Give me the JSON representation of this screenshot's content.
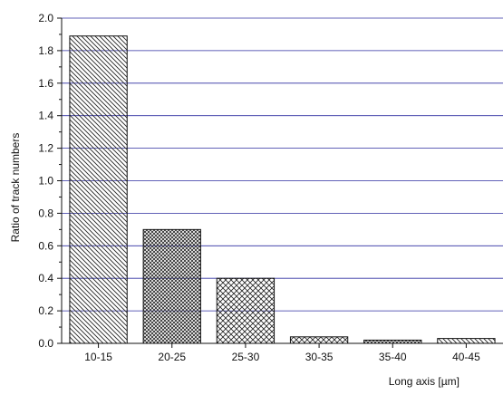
{
  "chart_data": {
    "type": "bar",
    "title": "",
    "xlabel": "Long axis [µm]",
    "ylabel": "Ratio of track numbers",
    "categories": [
      "10-15",
      "20-25",
      "25-30",
      "30-35",
      "35-40",
      "40-45"
    ],
    "values": [
      1.89,
      0.7,
      0.4,
      0.04,
      0.02,
      0.03
    ],
    "patterns": [
      "diagonal",
      "crosshatch-dense",
      "crosshatch",
      "crosshatch",
      "crosshatch-dense",
      "diagonal"
    ],
    "ylim": [
      0,
      2.0
    ],
    "yticks": [
      "0.0",
      "0.2",
      "0.4",
      "0.6",
      "0.8",
      "1.0",
      "1.2",
      "1.4",
      "1.6",
      "1.8",
      "2.0"
    ],
    "grid": true,
    "grid_color": "#2f2fa0",
    "bar_edge_color": "#111111",
    "pattern_color": "#222222"
  }
}
